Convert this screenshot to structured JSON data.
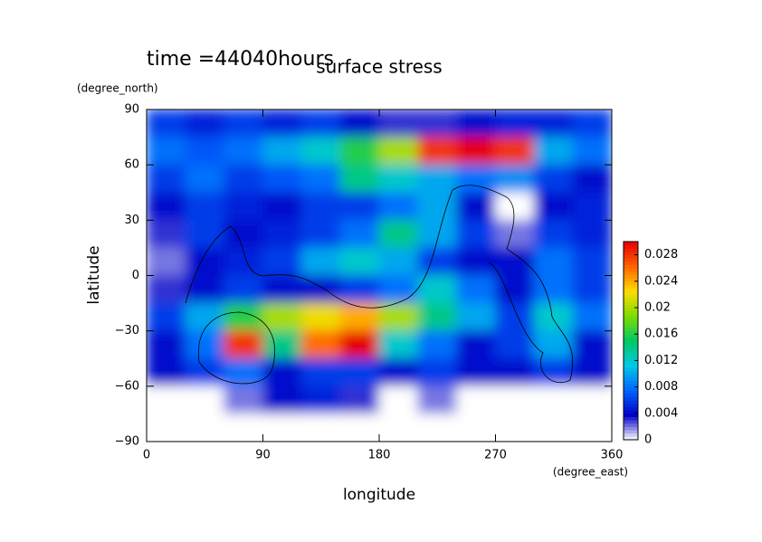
{
  "chart_data": {
    "type": "contour",
    "title": "surface stress",
    "subtitle": "time =44040hours",
    "x_label": "longitude",
    "x_units": "(degree_east)",
    "y_label": "latitude",
    "y_units": "(degree_north)",
    "xlim": [
      0,
      360
    ],
    "xticks": [
      0,
      90,
      180,
      270,
      360
    ],
    "ylim": [
      -90,
      90
    ],
    "yticks": [
      {
        "value": -90,
        "label": "−90"
      },
      {
        "value": -60,
        "label": "−60"
      },
      {
        "value": -30,
        "label": "−30"
      },
      0,
      30,
      60,
      90
    ],
    "x": [
      15,
      45,
      75,
      105,
      135,
      165,
      195,
      225,
      255,
      285,
      315,
      345
    ],
    "y": [
      82.5,
      67.5,
      52.5,
      37.5,
      22.5,
      7.5,
      -7.5,
      -22.5,
      -37.5,
      -52.5,
      -67.5,
      -82.5
    ],
    "z": [
      [
        0.006,
        0.005,
        0.006,
        0.005,
        0.006,
        0.004,
        0.003,
        0.003,
        0.004,
        0.005,
        0.005,
        0.006
      ],
      [
        0.008,
        0.007,
        0.008,
        0.01,
        0.012,
        0.016,
        0.02,
        0.028,
        0.03,
        0.028,
        0.01,
        0.008
      ],
      [
        0.006,
        0.008,
        0.006,
        0.007,
        0.008,
        0.014,
        0.012,
        0.01,
        0.008,
        0.009,
        0.006,
        0.004
      ],
      [
        0.004,
        0.006,
        0.005,
        0.004,
        0.006,
        0.006,
        0.008,
        0.01,
        0.004,
        0,
        0.004,
        0.005
      ],
      [
        0.003,
        0.006,
        0.004,
        0.005,
        0.006,
        0.008,
        0.014,
        0.01,
        0.006,
        0.002,
        0.006,
        0.005
      ],
      [
        0.002,
        0.004,
        0.005,
        0.006,
        0.01,
        0.012,
        0.01,
        0.006,
        0.004,
        0.004,
        0.008,
        0.006
      ],
      [
        0.003,
        0.004,
        0.006,
        0.004,
        0.004,
        0.006,
        0.008,
        0.012,
        0.008,
        0.004,
        0.008,
        0.006
      ],
      [
        0.006,
        0.01,
        0.016,
        0.02,
        0.022,
        0.024,
        0.02,
        0.014,
        0.01,
        0.006,
        0.012,
        0.008
      ],
      [
        0.004,
        0.008,
        0.028,
        0.014,
        0.026,
        0.03,
        0.012,
        0.008,
        0.004,
        0.006,
        0.01,
        0.004
      ],
      [
        0.004,
        0.006,
        0.008,
        0.004,
        0.006,
        0.006,
        0.004,
        0.006,
        0.004,
        0.004,
        0.006,
        0.004
      ],
      [
        0,
        0,
        0.002,
        0.004,
        0.005,
        0.003,
        0,
        0.002,
        0,
        0,
        0,
        0
      ],
      [
        0,
        0,
        0,
        0,
        0,
        0,
        0,
        0,
        0,
        0,
        0,
        0
      ]
    ],
    "clim": [
      0,
      0.03
    ],
    "cticks": [
      0,
      0.004,
      0.008,
      0.012,
      0.016,
      0.02,
      0.024,
      0.028
    ],
    "colors": [
      "#ffffff",
      "#0000c8",
      "#0064ff",
      "#00c8e6",
      "#00c864",
      "#7ddc00",
      "#ffdc00",
      "#ff6400",
      "#e60000"
    ]
  }
}
